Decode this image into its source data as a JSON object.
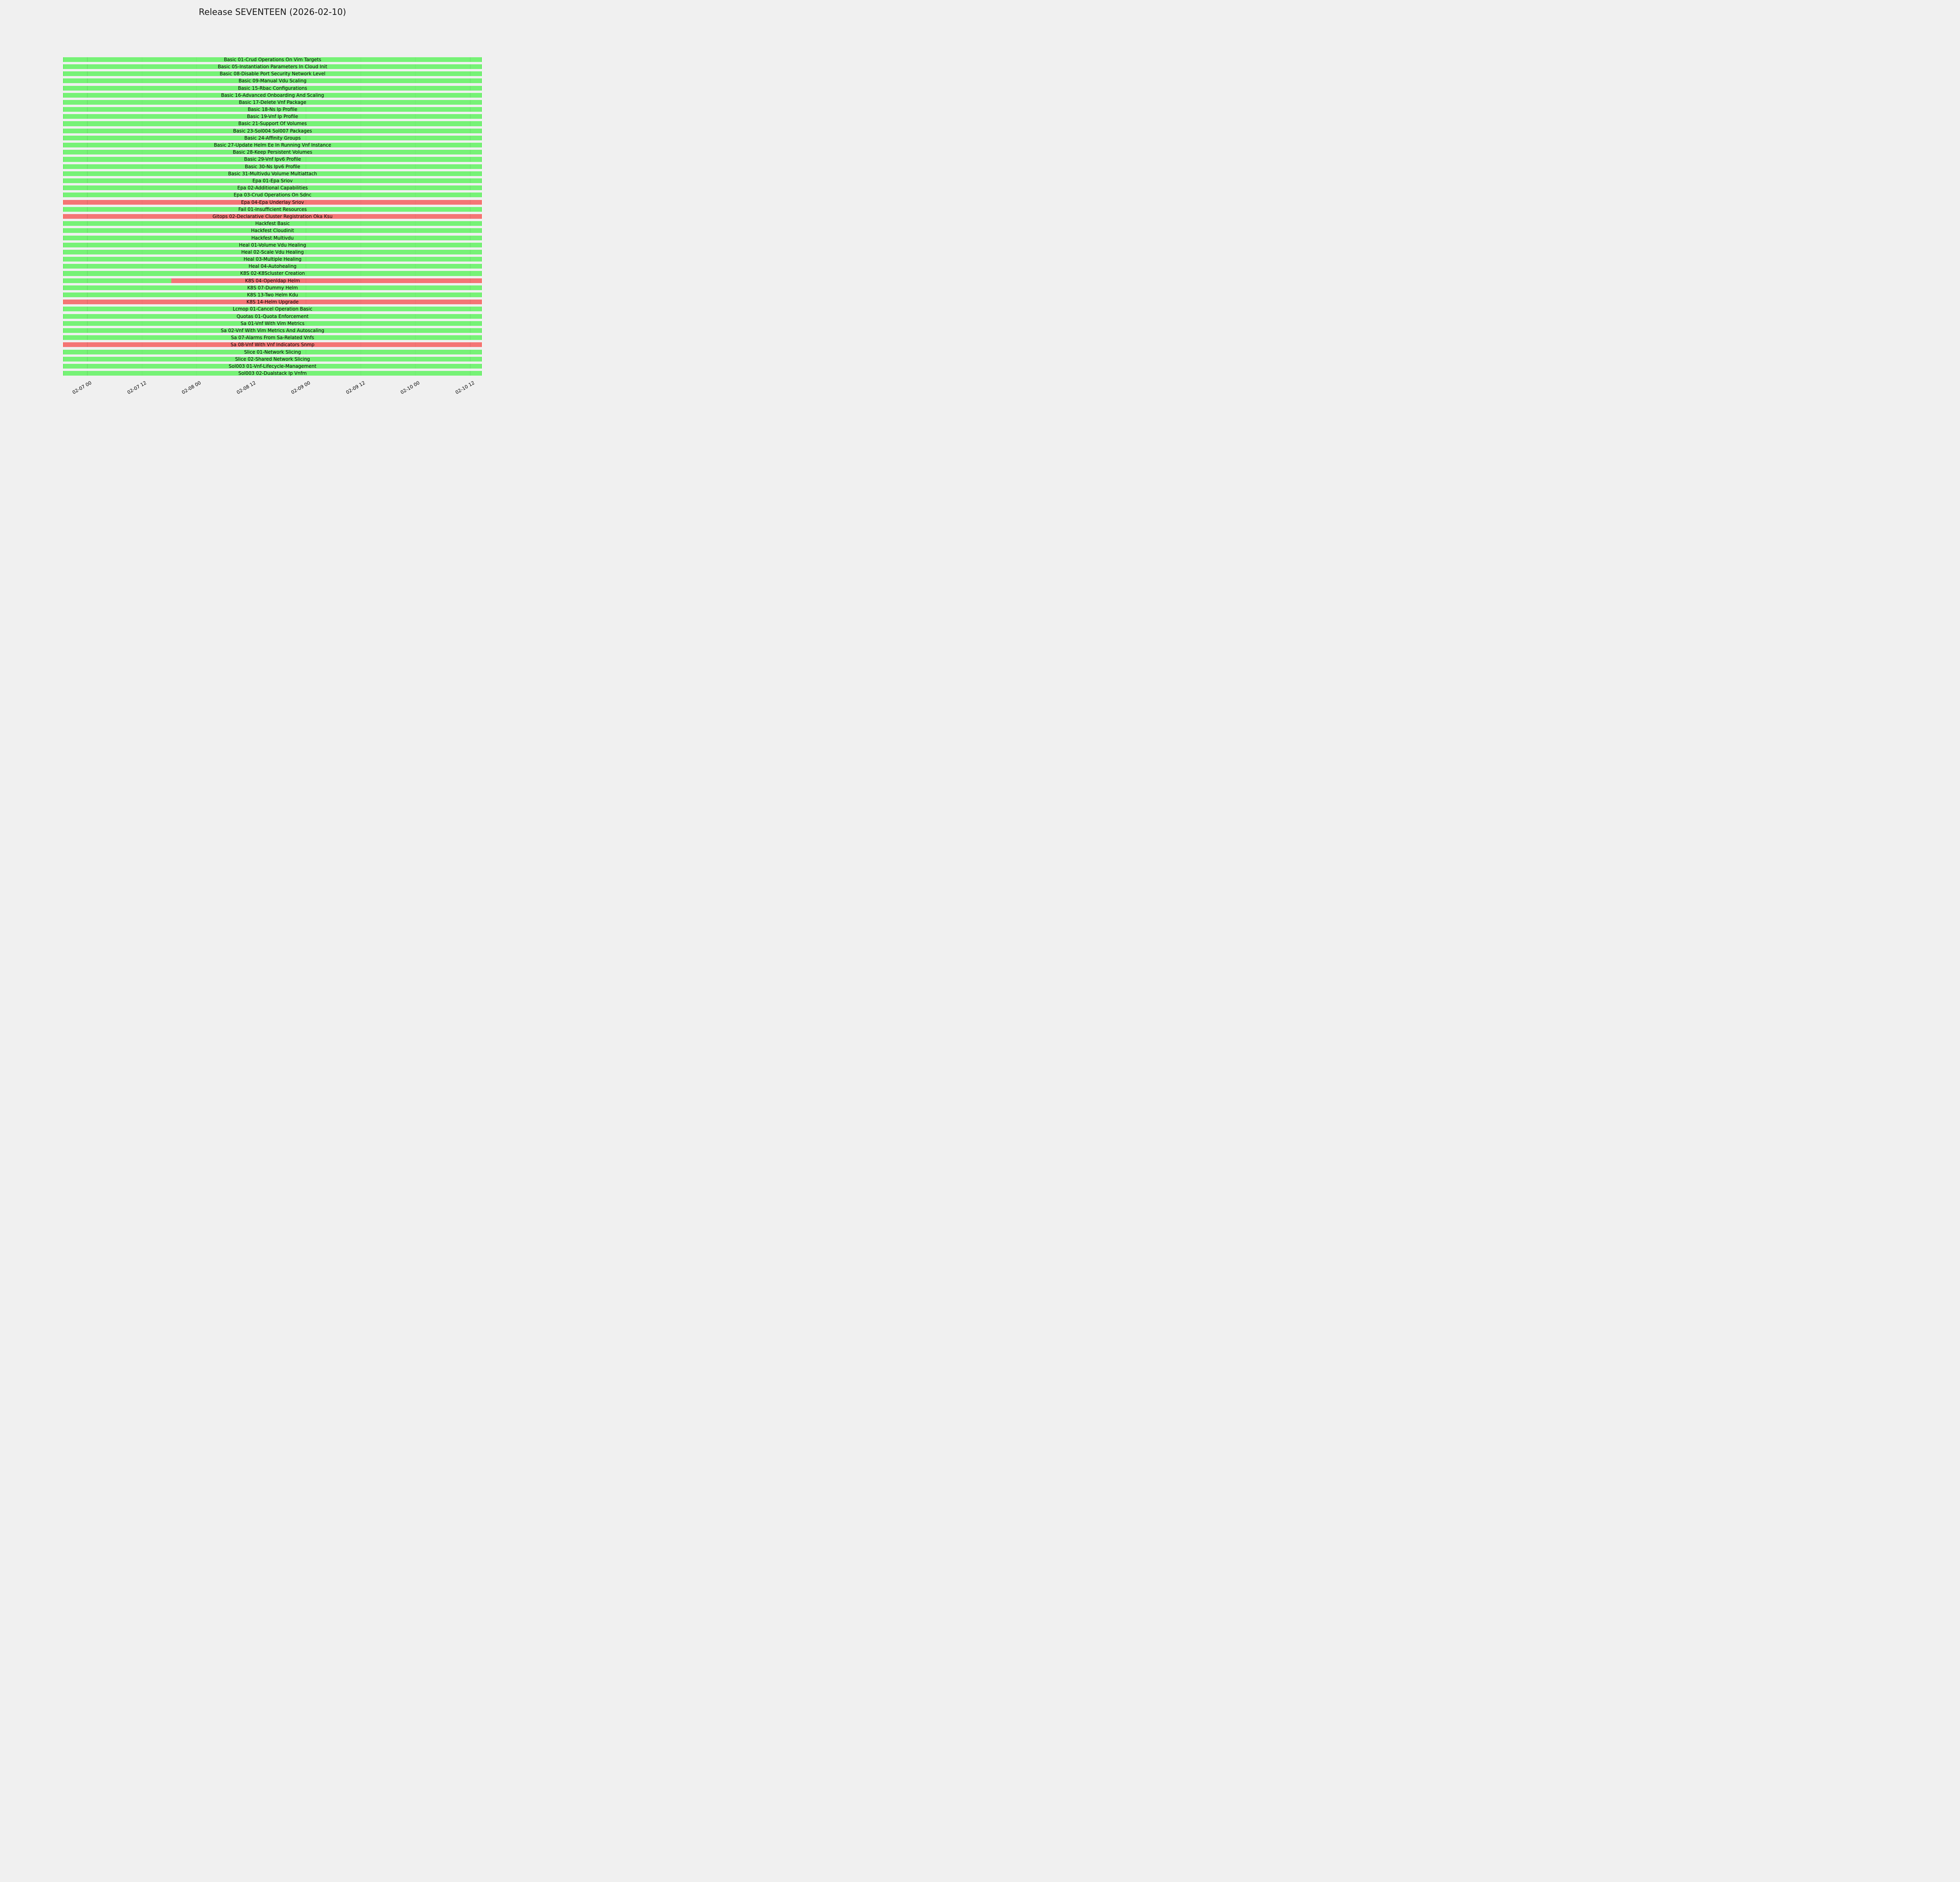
{
  "chart_data": {
    "type": "bar",
    "subtype": "gantt-status-timeline",
    "title": "Release SEVENTEEN (2026-02-10)",
    "legend": null,
    "grid": "vertical-ticks-visible-on-bars",
    "status_colors": {
      "pass": "#76f276",
      "pass_edge": "#3be83b",
      "fail": "#f47575",
      "fail_edge": "#ff4633",
      "background": "#f0f0f0",
      "text": "#000000"
    },
    "x_axis": {
      "tick_labels": [
        "02-07 00",
        "02-07 12",
        "02-08 00",
        "02-08 12",
        "02-09 00",
        "02-09 12",
        "02-10 00",
        "02-10 12"
      ],
      "tick_label_rotation_deg": 30,
      "bars_span_full_axis": true
    },
    "tasks": [
      {
        "label": "Basic 01-Crud Operations On Vim Targets",
        "status": "pass",
        "segments": [
          {
            "start": 0,
            "end": 1,
            "status": "pass"
          }
        ]
      },
      {
        "label": "Basic 05-Instantiation Parameters In Cloud Init",
        "status": "pass",
        "segments": [
          {
            "start": 0,
            "end": 1,
            "status": "pass"
          }
        ]
      },
      {
        "label": "Basic 08-Disable Port Security Network Level",
        "status": "pass",
        "segments": [
          {
            "start": 0,
            "end": 1,
            "status": "pass"
          }
        ]
      },
      {
        "label": "Basic 09-Manual Vdu Scaling",
        "status": "pass",
        "segments": [
          {
            "start": 0,
            "end": 1,
            "status": "pass"
          }
        ]
      },
      {
        "label": "Basic 15-Rbac Configurations",
        "status": "pass",
        "segments": [
          {
            "start": 0,
            "end": 1,
            "status": "pass"
          }
        ]
      },
      {
        "label": "Basic 16-Advanced Onboarding And Scaling",
        "status": "pass",
        "segments": [
          {
            "start": 0,
            "end": 1,
            "status": "pass"
          }
        ]
      },
      {
        "label": "Basic 17-Delete Vnf Package",
        "status": "pass",
        "segments": [
          {
            "start": 0,
            "end": 1,
            "status": "pass"
          }
        ]
      },
      {
        "label": "Basic 18-Ns Ip Profile",
        "status": "pass",
        "segments": [
          {
            "start": 0,
            "end": 1,
            "status": "pass"
          }
        ]
      },
      {
        "label": "Basic 19-Vnf Ip Profile",
        "status": "pass",
        "segments": [
          {
            "start": 0,
            "end": 1,
            "status": "pass"
          }
        ]
      },
      {
        "label": "Basic 21-Support Of Volumes",
        "status": "pass",
        "segments": [
          {
            "start": 0,
            "end": 1,
            "status": "pass"
          }
        ]
      },
      {
        "label": "Basic 23-Sol004 Sol007 Packages",
        "status": "pass",
        "segments": [
          {
            "start": 0,
            "end": 1,
            "status": "pass"
          }
        ]
      },
      {
        "label": "Basic 24-Affinity Groups",
        "status": "pass",
        "segments": [
          {
            "start": 0,
            "end": 1,
            "status": "pass"
          }
        ]
      },
      {
        "label": "Basic 27-Update Helm Ee In Running Vnf Instance",
        "status": "pass",
        "segments": [
          {
            "start": 0,
            "end": 1,
            "status": "pass"
          }
        ]
      },
      {
        "label": "Basic 28-Keep Persistent Volumes",
        "status": "pass",
        "segments": [
          {
            "start": 0,
            "end": 1,
            "status": "pass"
          }
        ]
      },
      {
        "label": "Basic 29-Vnf Ipv6 Profile",
        "status": "pass",
        "segments": [
          {
            "start": 0,
            "end": 1,
            "status": "pass"
          }
        ]
      },
      {
        "label": "Basic 30-Ns Ipv6 Profile",
        "status": "pass",
        "segments": [
          {
            "start": 0,
            "end": 1,
            "status": "pass"
          }
        ]
      },
      {
        "label": "Basic 31-Multivdu Volume Multiattach",
        "status": "pass",
        "segments": [
          {
            "start": 0,
            "end": 1,
            "status": "pass"
          }
        ]
      },
      {
        "label": "Epa 01-Epa Sriov",
        "status": "pass",
        "segments": [
          {
            "start": 0,
            "end": 1,
            "status": "pass"
          }
        ]
      },
      {
        "label": "Epa 02-Additional Capabilities",
        "status": "pass",
        "segments": [
          {
            "start": 0,
            "end": 1,
            "status": "pass"
          }
        ]
      },
      {
        "label": "Epa 03-Crud Operations On Sdnc",
        "status": "pass",
        "segments": [
          {
            "start": 0,
            "end": 1,
            "status": "pass"
          }
        ]
      },
      {
        "label": "Epa 04-Epa Underlay Sriov",
        "status": "fail",
        "segments": [
          {
            "start": 0,
            "end": 1,
            "status": "fail"
          }
        ]
      },
      {
        "label": "Fail 01-Insufficient Resources",
        "status": "pass",
        "segments": [
          {
            "start": 0,
            "end": 1,
            "status": "pass"
          }
        ]
      },
      {
        "label": "Gitops 02-Declarative Cluster Registration Oka Ksu",
        "status": "fail",
        "segments": [
          {
            "start": 0,
            "end": 1,
            "status": "fail"
          }
        ]
      },
      {
        "label": "Hackfest Basic",
        "status": "pass",
        "segments": [
          {
            "start": 0,
            "end": 1,
            "status": "pass"
          }
        ]
      },
      {
        "label": "Hackfest Cloudinit",
        "status": "pass",
        "segments": [
          {
            "start": 0,
            "end": 1,
            "status": "pass"
          }
        ]
      },
      {
        "label": "Hackfest Multivdu",
        "status": "pass",
        "segments": [
          {
            "start": 0,
            "end": 1,
            "status": "pass"
          }
        ]
      },
      {
        "label": "Heal 01-Volume Vdu Healing",
        "status": "pass",
        "segments": [
          {
            "start": 0,
            "end": 1,
            "status": "pass"
          }
        ]
      },
      {
        "label": "Heal 02-Scale Vdu Healing",
        "status": "pass",
        "segments": [
          {
            "start": 0,
            "end": 1,
            "status": "pass"
          }
        ]
      },
      {
        "label": "Heal 03-Multiple Healing",
        "status": "pass",
        "segments": [
          {
            "start": 0,
            "end": 1,
            "status": "pass"
          }
        ]
      },
      {
        "label": "Heal 04-Autohealing",
        "status": "pass",
        "segments": [
          {
            "start": 0,
            "end": 1,
            "status": "pass"
          }
        ]
      },
      {
        "label": "K8S 02-K8Scluster Creation",
        "status": "pass",
        "segments": [
          {
            "start": 0,
            "end": 1,
            "status": "pass"
          }
        ]
      },
      {
        "label": "K8S 04-Openldap Helm",
        "status": "mixed",
        "segments": [
          {
            "start": 0,
            "end": 0.258,
            "status": "pass"
          },
          {
            "start": 0.258,
            "end": 1,
            "status": "fail"
          }
        ]
      },
      {
        "label": "K8S 07-Dummy Helm",
        "status": "pass",
        "segments": [
          {
            "start": 0,
            "end": 1,
            "status": "pass"
          }
        ]
      },
      {
        "label": "K8S 13-Two Helm Kdu",
        "status": "pass",
        "segments": [
          {
            "start": 0,
            "end": 1,
            "status": "pass"
          }
        ]
      },
      {
        "label": "K8S 14-Helm Upgrade",
        "status": "fail",
        "segments": [
          {
            "start": 0,
            "end": 1,
            "status": "fail"
          }
        ]
      },
      {
        "label": "Lcmop 01-Cancel Operation Basic",
        "status": "pass",
        "segments": [
          {
            "start": 0,
            "end": 1,
            "status": "pass"
          }
        ]
      },
      {
        "label": "Quotas 01-Quota Enforcement",
        "status": "pass",
        "segments": [
          {
            "start": 0,
            "end": 1,
            "status": "pass"
          }
        ]
      },
      {
        "label": "Sa 01-Vnf With Vim Metrics",
        "status": "pass",
        "segments": [
          {
            "start": 0,
            "end": 1,
            "status": "pass"
          }
        ]
      },
      {
        "label": "Sa 02-Vnf With Vim Metrics And Autoscaling",
        "status": "pass",
        "segments": [
          {
            "start": 0,
            "end": 1,
            "status": "pass"
          }
        ]
      },
      {
        "label": "Sa 07-Alarms From Sa-Related Vnfs",
        "status": "pass",
        "segments": [
          {
            "start": 0,
            "end": 1,
            "status": "pass"
          }
        ]
      },
      {
        "label": "Sa 08-Vnf With Vnf Indicators Snmp",
        "status": "fail",
        "segments": [
          {
            "start": 0,
            "end": 1,
            "status": "fail"
          }
        ]
      },
      {
        "label": "Slice 01-Network Slicing",
        "status": "pass",
        "segments": [
          {
            "start": 0,
            "end": 1,
            "status": "pass"
          }
        ]
      },
      {
        "label": "Slice 02-Shared Network Slicing",
        "status": "pass",
        "segments": [
          {
            "start": 0,
            "end": 1,
            "status": "pass"
          }
        ]
      },
      {
        "label": "Sol003 01-Vnf-Lifecycle-Management",
        "status": "pass",
        "segments": [
          {
            "start": 0,
            "end": 1,
            "status": "pass"
          }
        ]
      },
      {
        "label": "Sol003 02-Dualstack Ip Vnfm",
        "status": "pass",
        "segments": [
          {
            "start": 0,
            "end": 1,
            "status": "pass"
          }
        ]
      }
    ]
  }
}
